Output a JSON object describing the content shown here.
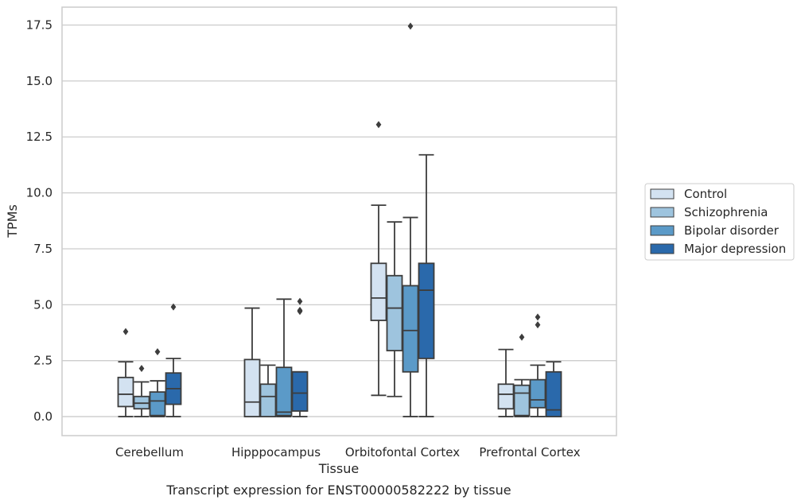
{
  "chart_data": {
    "type": "box",
    "title": "",
    "caption": "Transcript expression for ENST00000582222 by tissue",
    "xlabel": "Tissue",
    "ylabel": "TPMs",
    "ylim": [
      -0.85,
      18.3
    ],
    "yticks": [
      "0.0",
      "2.5",
      "5.0",
      "7.5",
      "10.0",
      "12.5",
      "15.0",
      "17.5"
    ],
    "ytick_values": [
      0,
      2.5,
      5,
      7.5,
      10,
      12.5,
      15,
      17.5
    ],
    "grid": "horizontal",
    "legend_position": "right",
    "categories": [
      "Cerebellum",
      "Hipppocampus",
      "Orbitofontal Cortex",
      "Prefrontal Cortex"
    ],
    "series": [
      {
        "name": "Control",
        "color": "#d3e2f1",
        "boxes": [
          {
            "whislo": 0.0,
            "q1": 0.45,
            "med": 1.0,
            "q3": 1.75,
            "whishi": 2.45,
            "fliers": [
              3.8
            ]
          },
          {
            "whislo": 0.0,
            "q1": 0.0,
            "med": 0.65,
            "q3": 2.55,
            "whishi": 4.85,
            "fliers": []
          },
          {
            "whislo": 0.95,
            "q1": 4.3,
            "med": 5.3,
            "q3": 6.85,
            "whishi": 9.45,
            "fliers": [
              13.05
            ]
          },
          {
            "whislo": 0.0,
            "q1": 0.35,
            "med": 1.0,
            "q3": 1.45,
            "whishi": 3.0,
            "fliers": []
          }
        ]
      },
      {
        "name": "Schizophrenia",
        "color": "#9ec4de",
        "boxes": [
          {
            "whislo": 0.0,
            "q1": 0.35,
            "med": 0.6,
            "q3": 0.9,
            "whishi": 1.55,
            "fliers": [
              2.15
            ]
          },
          {
            "whislo": 0.0,
            "q1": 0.0,
            "med": 0.9,
            "q3": 1.45,
            "whishi": 2.3,
            "fliers": []
          },
          {
            "whislo": 0.9,
            "q1": 2.95,
            "med": 4.85,
            "q3": 6.3,
            "whishi": 8.7,
            "fliers": []
          },
          {
            "whislo": 0.0,
            "q1": 0.05,
            "med": 1.05,
            "q3": 1.4,
            "whishi": 1.65,
            "fliers": [
              3.55
            ]
          }
        ]
      },
      {
        "name": "Bipolar disorder",
        "color": "#5b9ac8",
        "boxes": [
          {
            "whislo": 0.0,
            "q1": 0.05,
            "med": 0.7,
            "q3": 1.1,
            "whishi": 1.6,
            "fliers": [
              2.9
            ]
          },
          {
            "whislo": 0.0,
            "q1": 0.05,
            "med": 0.2,
            "q3": 2.2,
            "whishi": 5.25,
            "fliers": []
          },
          {
            "whislo": 0.0,
            "q1": 2.0,
            "med": 3.85,
            "q3": 5.85,
            "whishi": 8.9,
            "fliers": [
              17.45
            ]
          },
          {
            "whislo": 0.0,
            "q1": 0.4,
            "med": 0.75,
            "q3": 1.65,
            "whishi": 2.3,
            "fliers": [
              4.1,
              4.45
            ]
          }
        ]
      },
      {
        "name": "Major depression",
        "color": "#2a69ab",
        "boxes": [
          {
            "whislo": 0.0,
            "q1": 0.55,
            "med": 1.25,
            "q3": 1.95,
            "whishi": 2.6,
            "fliers": [
              4.9
            ]
          },
          {
            "whislo": 0.0,
            "q1": 0.25,
            "med": 1.05,
            "q3": 2.0,
            "whishi": 2.0,
            "fliers": [
              4.7,
              4.75,
              5.15
            ]
          },
          {
            "whislo": 0.0,
            "q1": 2.6,
            "med": 5.65,
            "q3": 6.85,
            "whishi": 11.7,
            "fliers": []
          },
          {
            "whislo": 0.0,
            "q1": 0.0,
            "med": 0.3,
            "q3": 2.0,
            "whishi": 2.45,
            "fliers": []
          }
        ]
      }
    ]
  }
}
